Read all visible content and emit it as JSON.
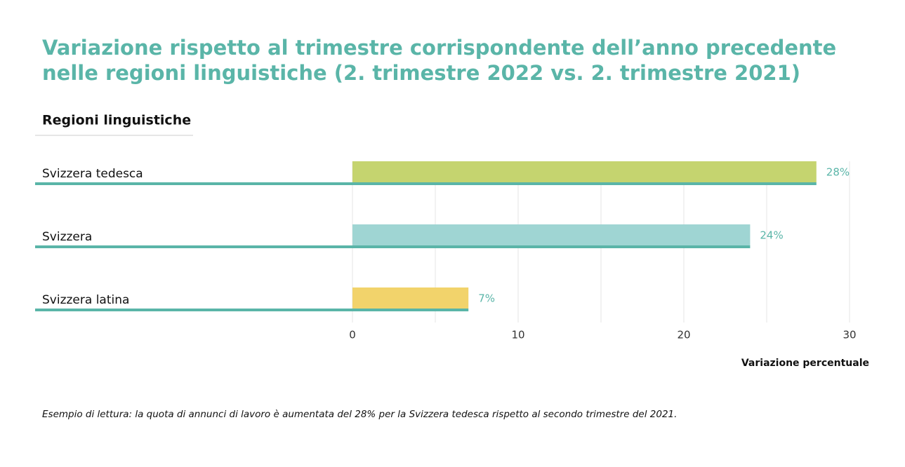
{
  "chart_data": {
    "type": "bar",
    "orientation": "horizontal",
    "title": [
      "Variazione rispetto al trimestre corrispondente dell’anno precedente",
      "nelle regioni linguistiche (2. trimestre 2022 vs. 2. trimestre 2021)"
    ],
    "y_label": "Regioni linguistiche",
    "x_label": "Variazione percentuale",
    "note": "Esempio di lettura: la quota di annunci di lavoro è aumentata del 28% per la Svizzera tedesca rispetto al secondo trimestre del 2021.",
    "categories": [
      "Svizzera tedesca",
      "Svizzera",
      "Svizzera latina"
    ],
    "values": [
      28,
      24,
      7
    ],
    "value_labels": [
      "28%",
      "24%",
      "7%"
    ],
    "colors": [
      "#c5d46f",
      "#9fd5d3",
      "#f2d36b"
    ],
    "underline_color": "#5ab5a8",
    "xlim": [
      0,
      30
    ],
    "xticks": [
      0,
      10,
      20,
      30
    ],
    "xminor": [
      5,
      15,
      25
    ],
    "grid": true
  }
}
